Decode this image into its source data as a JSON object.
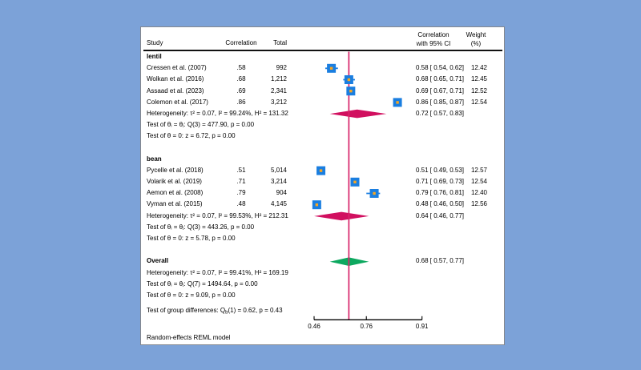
{
  "chart_data": {
    "type": "forest",
    "effect_label": "Correlation",
    "model_note": "Random-effects REML model",
    "columns": {
      "study": "Study",
      "correlation": "Correlation",
      "total": "Total",
      "ci_line1": "Correlation",
      "ci_line2": "with 95% CI",
      "weight_line1": "Weight",
      "weight_line2": "(%)"
    },
    "x_axis": {
      "scale": "fisher_z",
      "ticks": [
        0.46,
        0.76,
        0.91
      ],
      "tick_labels": [
        "0.46",
        "0.76",
        "0.91"
      ],
      "overall_line_at": 0.68
    },
    "colors": {
      "background": "#7CA2D8",
      "panel": "#FFFFFF",
      "panel_border": "#84878D",
      "marker": "#1A7EE0",
      "marker_dot": "#F7A621",
      "subgroup_diamond": "#D10F5F",
      "overall_diamond": "#0DA85F",
      "overall_line": "#D8246A",
      "axis": "#000000",
      "text": "#000000"
    },
    "rows": [
      {
        "type": "group",
        "label": "lentil"
      },
      {
        "type": "study",
        "study": "Cressen et al. (2007)",
        "correlation": ".58",
        "total": "992",
        "r": 0.58,
        "lo": 0.54,
        "hi": 0.62,
        "ci": "0.58 [ 0.54, 0.62]",
        "weight": "12.42"
      },
      {
        "type": "study",
        "study": "Wolkan et al. (2016)",
        "correlation": ".68",
        "total": "1,212",
        "r": 0.68,
        "lo": 0.65,
        "hi": 0.71,
        "ci": "0.68 [ 0.65, 0.71]",
        "weight": "12.45"
      },
      {
        "type": "study",
        "study": "Assaad et al. (2023)",
        "correlation": ".69",
        "total": "2,341",
        "r": 0.69,
        "lo": 0.67,
        "hi": 0.71,
        "ci": "0.69 [ 0.67, 0.71]",
        "weight": "12.52"
      },
      {
        "type": "study",
        "study": "Colemon et al. (2017)",
        "correlation": ".86",
        "total": "3,212",
        "r": 0.86,
        "lo": 0.85,
        "hi": 0.87,
        "ci": "0.86 [ 0.85, 0.87]",
        "weight": "12.54"
      },
      {
        "type": "summary",
        "label": "Heterogeneity: τ² = 0.07, I² = 99.24%, H² = 131.32",
        "r": 0.72,
        "lo": 0.57,
        "hi": 0.83,
        "ci": "0.72 [ 0.57, 0.83]",
        "color": "subgroup"
      },
      {
        "type": "stat",
        "label": "Test of θᵢ = θⱼ: Q(3) = 477.90, p = 0.00"
      },
      {
        "type": "stat",
        "label": "Test of θ = 0: z = 6.72, p = 0.00"
      },
      {
        "type": "spacer"
      },
      {
        "type": "group",
        "label": "bean"
      },
      {
        "type": "study",
        "study": "Pycelle et al. (2018)",
        "correlation": ".51",
        "total": "5,014",
        "r": 0.51,
        "lo": 0.49,
        "hi": 0.53,
        "ci": "0.51 [ 0.49, 0.53]",
        "weight": "12.57"
      },
      {
        "type": "study",
        "study": "Volarik et al. (2019)",
        "correlation": ".71",
        "total": "3,214",
        "r": 0.71,
        "lo": 0.69,
        "hi": 0.73,
        "ci": "0.71 [ 0.69, 0.73]",
        "weight": "12.54"
      },
      {
        "type": "study",
        "study": "Aemon et al. (2008)",
        "correlation": ".79",
        "total": "904",
        "r": 0.79,
        "lo": 0.76,
        "hi": 0.81,
        "ci": "0.79 [ 0.76, 0.81]",
        "weight": "12.40"
      },
      {
        "type": "study",
        "study": "Vyman et al. (2015)",
        "correlation": ".48",
        "total": "4,145",
        "r": 0.48,
        "lo": 0.46,
        "hi": 0.5,
        "ci": "0.48 [ 0.46, 0.50]",
        "weight": "12.56"
      },
      {
        "type": "summary",
        "label": "Heterogeneity: τ² = 0.07, I² = 99.53%, H² = 212.31",
        "r": 0.64,
        "lo": 0.46,
        "hi": 0.77,
        "ci": "0.64 [ 0.46, 0.77]",
        "color": "subgroup"
      },
      {
        "type": "stat",
        "label": "Test of θᵢ = θⱼ: Q(3) = 443.26, p = 0.00"
      },
      {
        "type": "stat",
        "label": "Test of θ = 0: z = 5.78, p = 0.00"
      },
      {
        "type": "spacer"
      },
      {
        "type": "summary",
        "label": "Overall",
        "bold": true,
        "r": 0.68,
        "lo": 0.57,
        "hi": 0.77,
        "ci": "0.68 [ 0.57, 0.77]",
        "color": "overall"
      },
      {
        "type": "stat",
        "label": "Heterogeneity: τ² = 0.07, I² = 99.41%, H² = 169.19"
      },
      {
        "type": "stat",
        "label": "Test of θᵢ = θⱼ: Q(7) = 1494.64, p = 0.00"
      },
      {
        "type": "stat",
        "label": "Test of θ = 0: z = 9.09, p = 0.00"
      },
      {
        "type": "spacer_small"
      },
      {
        "type": "stat_sub",
        "parts": [
          {
            "text": "Test of group differences: Q"
          },
          {
            "text": "b",
            "sub": true
          },
          {
            "text": "(1) = 0.62, p = 0.43"
          }
        ]
      }
    ]
  }
}
